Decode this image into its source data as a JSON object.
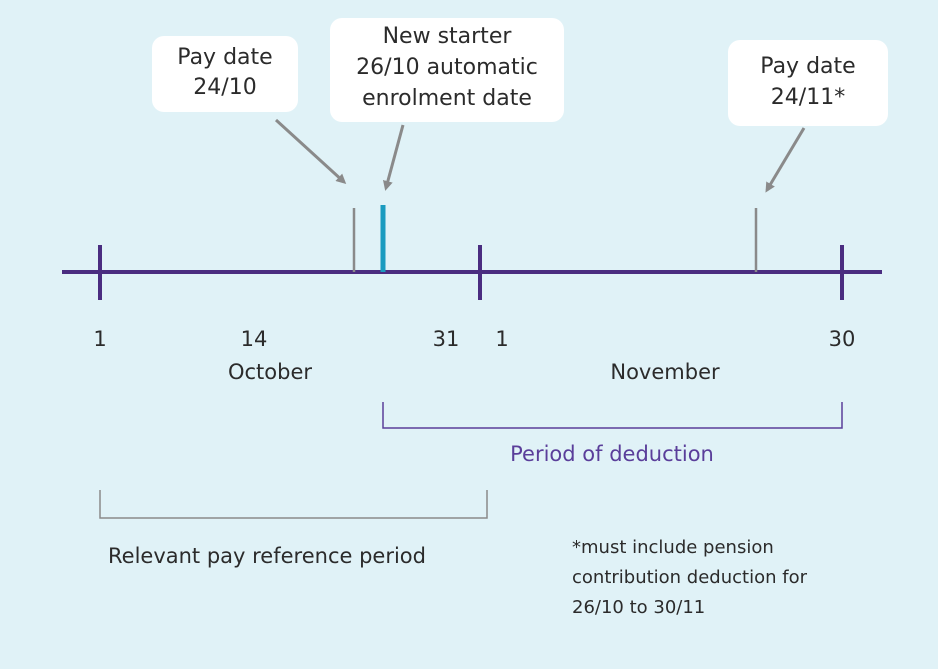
{
  "callouts": [
    {
      "lines": [
        "Pay date",
        "24/10"
      ]
    },
    {
      "lines": [
        "New starter",
        "26/10 automatic",
        "enrolment date"
      ]
    },
    {
      "lines": [
        "Pay date",
        "24/11*"
      ]
    }
  ],
  "day_labels": [
    "1",
    "14",
    "31",
    "1",
    "30"
  ],
  "months": [
    "October",
    "November"
  ],
  "period_of_deduction": "Period of deduction",
  "reference_period": "Relevant pay reference period",
  "footnote": [
    "*must include pension",
    "contribution deduction for",
    "26/10 to 30/11"
  ]
}
